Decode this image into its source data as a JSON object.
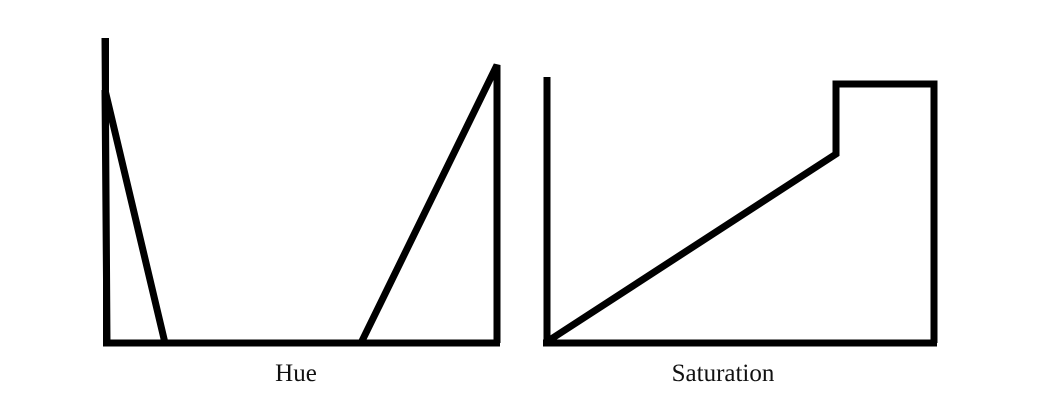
{
  "panels": [
    {
      "id": "hue",
      "label": "Hue"
    },
    {
      "id": "saturation",
      "label": "Saturation"
    }
  ],
  "style": {
    "stroke_color": "#000000",
    "background": "#ffffff"
  }
}
